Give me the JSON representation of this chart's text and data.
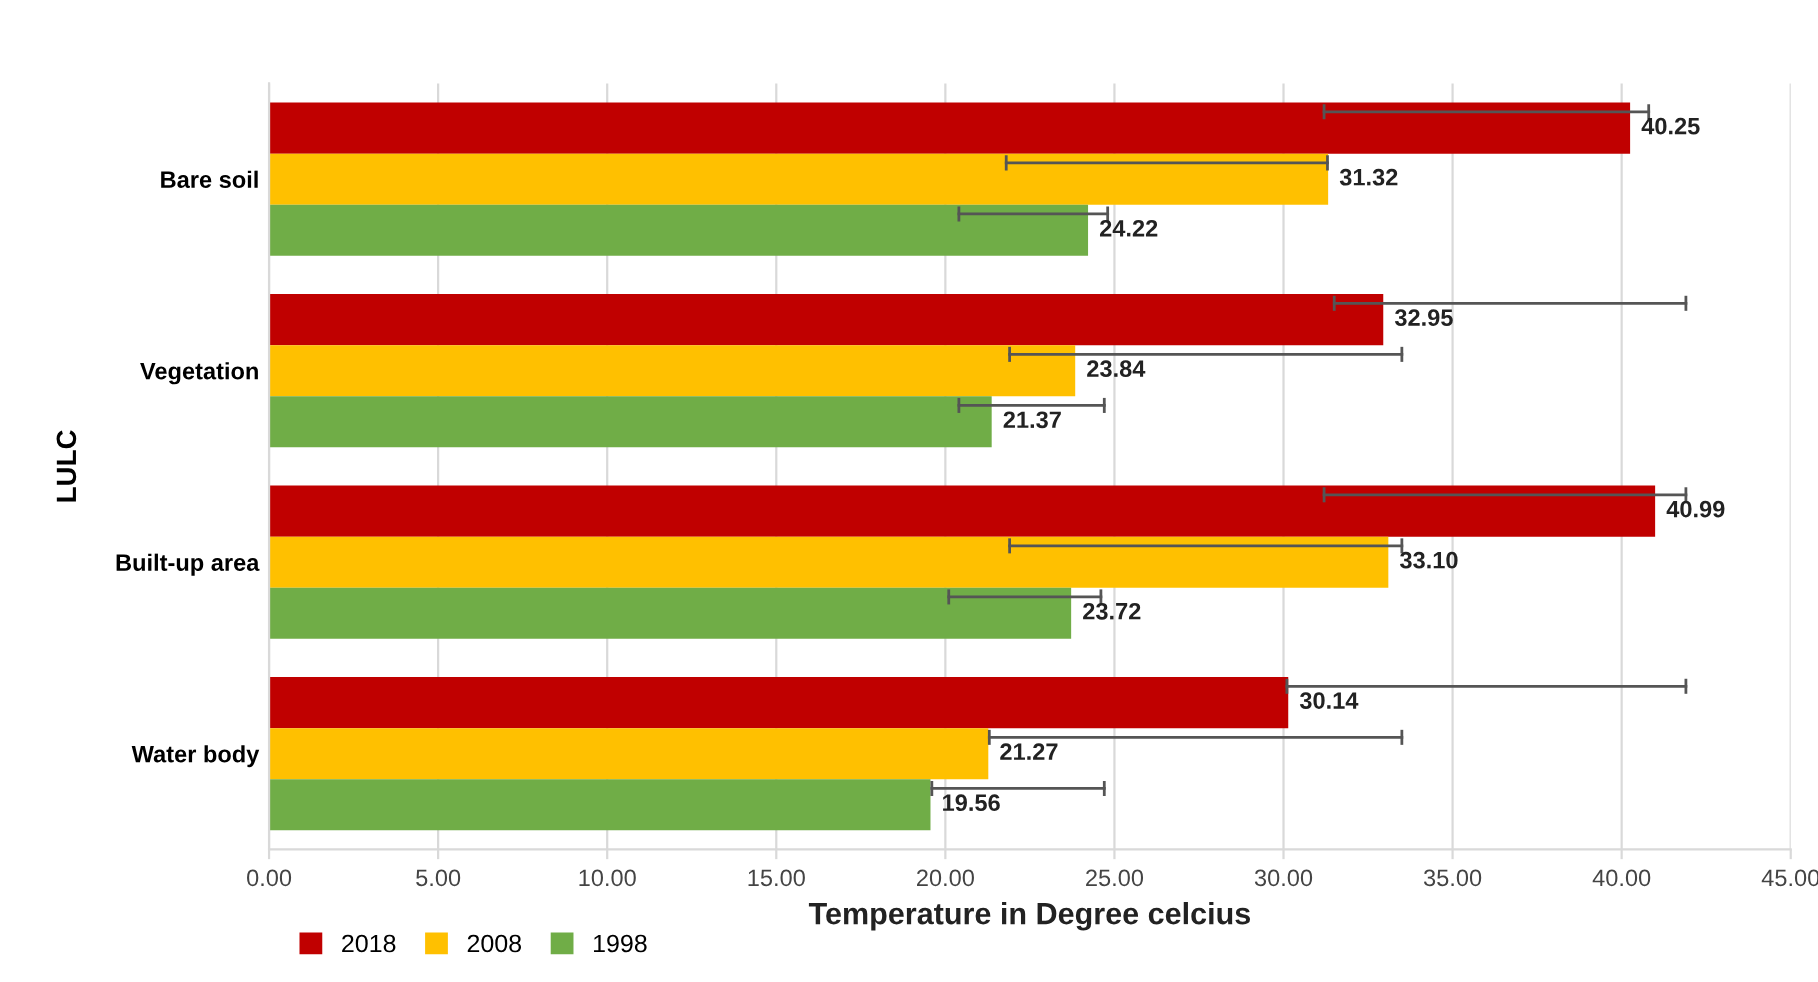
{
  "chart_data": {
    "type": "bar",
    "orientation": "horizontal",
    "xlabel": "Temperature in Degree celcius",
    "ylabel": "LULC",
    "categories": [
      "Bare soil",
      "Vegetation",
      "Built-up area",
      "Water body"
    ],
    "series": [
      {
        "name": "2018",
        "color": "#c00000",
        "values": [
          40.25,
          32.95,
          40.99,
          30.14
        ],
        "value_labels": [
          "40.25",
          "32.95",
          "40.99",
          "30.14"
        ],
        "errors": [
          [
            31.2,
            40.8
          ],
          [
            31.5,
            41.9
          ],
          [
            31.2,
            41.9
          ],
          [
            30.1,
            41.9
          ]
        ]
      },
      {
        "name": "2008",
        "color": "#ffc000",
        "values": [
          31.32,
          23.84,
          33.1,
          21.27
        ],
        "value_labels": [
          "31.32",
          "23.84",
          "33.10",
          "21.27"
        ],
        "errors": [
          [
            21.8,
            31.3
          ],
          [
            21.9,
            33.5
          ],
          [
            21.9,
            33.5
          ],
          [
            21.3,
            33.5
          ]
        ]
      },
      {
        "name": "1998",
        "color": "#70ad47",
        "values": [
          24.22,
          21.37,
          23.72,
          19.56
        ],
        "value_labels": [
          "24.22",
          "21.37",
          "23.72",
          "19.56"
        ],
        "errors": [
          [
            20.4,
            24.8
          ],
          [
            20.4,
            24.7
          ],
          [
            20.1,
            24.6
          ],
          [
            19.6,
            24.7
          ]
        ]
      }
    ],
    "xlim": [
      0,
      45
    ],
    "xticks": [
      {
        "value": 0,
        "label": "0.00"
      },
      {
        "value": 5,
        "label": "5.00"
      },
      {
        "value": 10,
        "label": "10.00"
      },
      {
        "value": 15,
        "label": "15.00"
      },
      {
        "value": 20,
        "label": "20.00"
      },
      {
        "value": 25,
        "label": "25.00"
      },
      {
        "value": 30,
        "label": "30.00"
      },
      {
        "value": 35,
        "label": "35.00"
      },
      {
        "value": 40,
        "label": "40.00"
      },
      {
        "value": 45,
        "label": "45.00"
      }
    ],
    "grid": "x",
    "legend": "bottom left"
  }
}
